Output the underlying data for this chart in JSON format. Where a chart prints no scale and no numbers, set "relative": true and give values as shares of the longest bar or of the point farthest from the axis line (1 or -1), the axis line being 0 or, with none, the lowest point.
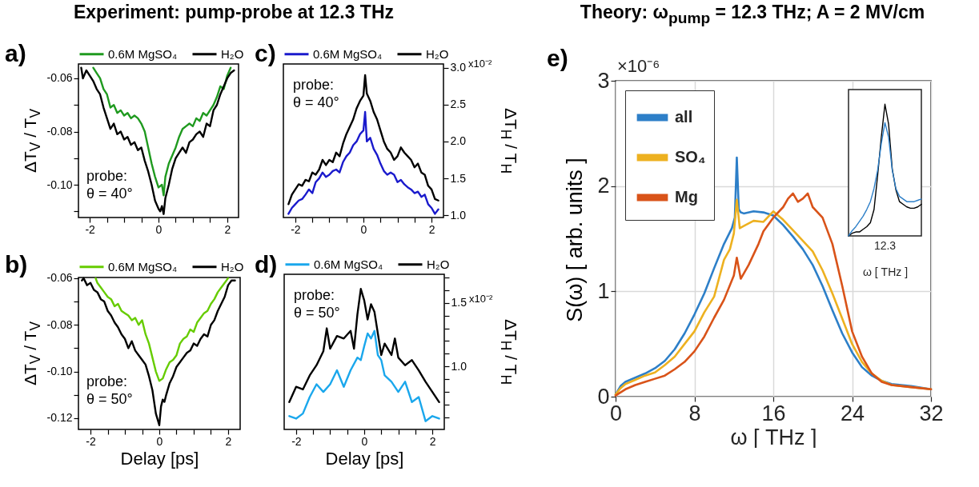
{
  "chart_data": [
    {
      "type": "line",
      "title": "a)",
      "ylabel": "ΔT$_{V}$ / T$_{V}$",
      "annotations": [
        "Experiment: pump-probe at 12.3 THz",
        "probe:\nθ = 40°"
      ],
      "legend": "top",
      "xlim": [
        -2.33,
        2.33
      ],
      "xticks": [
        -2,
        {
          "value": -1.5,
          "label": null
        },
        {
          "value": -1,
          "label": null
        },
        {
          "value": -0.5,
          "label": null
        },
        0,
        {
          "value": 0.5,
          "label": null
        },
        {
          "value": 1,
          "label": null
        },
        {
          "value": 1.5,
          "label": null
        },
        2
      ],
      "ylim": [
        -0.1123,
        -0.0546
      ],
      "yticks": [
        -0.06,
        {
          "value": -0.07,
          "label": null
        },
        -0.08,
        {
          "value": -0.09,
          "label": null
        },
        {
          "value": -0.1,
          "label": "-0.10"
        },
        {
          "value": -0.11,
          "label": null
        }
      ],
      "series": [
        {
          "name": "0.6M MgSO₄",
          "color": "#1f9a1f",
          "x": [
            -1.9,
            -1.8,
            -1.7,
            -1.6,
            -1.5,
            -1.4,
            -1.3,
            -1.2,
            -1.1,
            -1.0,
            -0.9,
            -0.8,
            -0.7,
            -0.6,
            -0.5,
            -0.4,
            -0.3,
            -0.2,
            -0.1,
            0,
            0.1,
            0.15,
            0.2,
            0.3,
            0.4,
            0.5,
            0.6,
            0.7,
            0.8,
            0.9,
            1.0,
            1.1,
            1.2,
            1.3,
            1.4,
            1.5,
            1.6,
            1.7,
            1.8,
            1.9,
            2.0,
            2.1
          ],
          "values": [
            -0.056,
            -0.058,
            -0.06,
            -0.064,
            -0.066,
            -0.071,
            -0.07,
            -0.073,
            -0.072,
            -0.074,
            -0.073,
            -0.075,
            -0.074,
            -0.075,
            -0.077,
            -0.08,
            -0.086,
            -0.092,
            -0.097,
            -0.101,
            -0.1,
            -0.104,
            -0.097,
            -0.092,
            -0.089,
            -0.086,
            -0.082,
            -0.079,
            -0.078,
            -0.077,
            -0.078,
            -0.075,
            -0.076,
            -0.073,
            -0.074,
            -0.072,
            -0.07,
            -0.067,
            -0.063,
            -0.064,
            -0.059,
            -0.056
          ]
        },
        {
          "name": "H₂O",
          "color": "#000000",
          "x": [
            -2.25,
            -2.2,
            -2.1,
            -2.0,
            -1.9,
            -1.8,
            -1.7,
            -1.6,
            -1.5,
            -1.4,
            -1.3,
            -1.2,
            -1.1,
            -1.0,
            -0.9,
            -0.8,
            -0.7,
            -0.6,
            -0.5,
            -0.4,
            -0.3,
            -0.2,
            -0.1,
            0,
            0.05,
            0.1,
            0.15,
            0.2,
            0.3,
            0.4,
            0.5,
            0.6,
            0.7,
            0.8,
            0.9,
            1.0,
            1.1,
            1.2,
            1.3,
            1.4,
            1.5,
            1.6,
            1.7,
            1.8,
            1.9,
            2.0,
            2.1,
            2.2
          ],
          "values": [
            -0.056,
            -0.06,
            -0.057,
            -0.059,
            -0.061,
            -0.064,
            -0.066,
            -0.071,
            -0.075,
            -0.079,
            -0.077,
            -0.081,
            -0.08,
            -0.083,
            -0.082,
            -0.085,
            -0.084,
            -0.087,
            -0.086,
            -0.091,
            -0.095,
            -0.1,
            -0.106,
            -0.109,
            -0.11,
            -0.108,
            -0.111,
            -0.105,
            -0.1,
            -0.094,
            -0.09,
            -0.088,
            -0.086,
            -0.088,
            -0.084,
            -0.083,
            -0.081,
            -0.08,
            -0.082,
            -0.077,
            -0.078,
            -0.072,
            -0.07,
            -0.066,
            -0.063,
            -0.06,
            -0.058,
            -0.057
          ]
        }
      ]
    },
    {
      "type": "line",
      "title": "b)",
      "xlabel": "Delay [ps]",
      "ylabel": "ΔT$_{V}$ / T$_{V}$",
      "annotations": [
        "probe:\nθ = 50°"
      ],
      "legend": "top",
      "xlim": [
        -2.35,
        2.35
      ],
      "xticks": [
        -2,
        {
          "value": -1.5,
          "label": null
        },
        {
          "value": -1,
          "label": null
        },
        {
          "value": -0.5,
          "label": null
        },
        0,
        {
          "value": 0.5,
          "label": null
        },
        {
          "value": 1,
          "label": null
        },
        {
          "value": 1.5,
          "label": null
        },
        2
      ],
      "ylim": [
        -0.1248,
        -0.0597
      ],
      "yticks": [
        -0.06,
        {
          "value": -0.07,
          "label": null
        },
        -0.08,
        {
          "value": -0.09,
          "label": null
        },
        {
          "value": -0.1,
          "label": "-0.10"
        },
        {
          "value": -0.11,
          "label": null
        },
        -0.12
      ],
      "series": [
        {
          "name": "0.6M MgSO₄",
          "color": "#66cc00",
          "x": [
            -1.85,
            -1.8,
            -1.7,
            -1.6,
            -1.5,
            -1.4,
            -1.3,
            -1.2,
            -1.1,
            -1.0,
            -0.9,
            -0.8,
            -0.7,
            -0.6,
            -0.5,
            -0.4,
            -0.3,
            -0.2,
            -0.1,
            0,
            0.1,
            0.2,
            0.3,
            0.4,
            0.5,
            0.6,
            0.7,
            0.8,
            0.9,
            1.0,
            1.1,
            1.2,
            1.3,
            1.4,
            1.5,
            1.6,
            1.7,
            1.8,
            1.9,
            2.0
          ],
          "values": [
            -0.06,
            -0.062,
            -0.064,
            -0.066,
            -0.068,
            -0.069,
            -0.072,
            -0.071,
            -0.074,
            -0.075,
            -0.076,
            -0.078,
            -0.077,
            -0.08,
            -0.078,
            -0.084,
            -0.088,
            -0.094,
            -0.1,
            -0.104,
            -0.103,
            -0.099,
            -0.096,
            -0.095,
            -0.093,
            -0.088,
            -0.086,
            -0.085,
            -0.082,
            -0.083,
            -0.079,
            -0.077,
            -0.075,
            -0.074,
            -0.071,
            -0.069,
            -0.066,
            -0.064,
            -0.062,
            -0.06
          ]
        },
        {
          "name": "H₂O",
          "color": "#000000",
          "x": [
            -2.25,
            -2.2,
            -2.1,
            -2.0,
            -1.9,
            -1.8,
            -1.7,
            -1.6,
            -1.5,
            -1.4,
            -1.3,
            -1.2,
            -1.1,
            -1.0,
            -0.9,
            -0.8,
            -0.7,
            -0.6,
            -0.5,
            -0.4,
            -0.3,
            -0.2,
            -0.1,
            0,
            0.05,
            0.1,
            0.15,
            0.2,
            0.3,
            0.4,
            0.5,
            0.6,
            0.7,
            0.8,
            0.9,
            1.0,
            1.1,
            1.2,
            1.3,
            1.4,
            1.5,
            1.6,
            1.7,
            1.8,
            1.9,
            2.0,
            2.1,
            2.2
          ],
          "values": [
            -0.061,
            -0.06,
            -0.063,
            -0.062,
            -0.065,
            -0.066,
            -0.069,
            -0.07,
            -0.074,
            -0.076,
            -0.079,
            -0.081,
            -0.084,
            -0.086,
            -0.09,
            -0.087,
            -0.091,
            -0.093,
            -0.095,
            -0.097,
            -0.102,
            -0.108,
            -0.118,
            -0.123,
            -0.115,
            -0.112,
            -0.113,
            -0.11,
            -0.105,
            -0.102,
            -0.098,
            -0.096,
            -0.094,
            -0.092,
            -0.091,
            -0.088,
            -0.089,
            -0.086,
            -0.084,
            -0.085,
            -0.08,
            -0.078,
            -0.074,
            -0.071,
            -0.068,
            -0.063,
            -0.061,
            -0.061
          ]
        }
      ]
    },
    {
      "type": "line",
      "title": "c)",
      "ylabel": "ΔT$_{H}$ / T$_{H}$",
      "annotations": [
        "probe:\nθ = 40°",
        "x10⁻²"
      ],
      "legend": "top",
      "xlim": [
        -2.35,
        2.35
      ],
      "xticks": [
        -2,
        {
          "value": -1.5,
          "label": null
        },
        {
          "value": -1,
          "label": null
        },
        {
          "value": -0.5,
          "label": null
        },
        0,
        {
          "value": 0.5,
          "label": null
        },
        {
          "value": 1,
          "label": null
        },
        {
          "value": 1.5,
          "label": null
        },
        2
      ],
      "ylim": [
        0.97,
        3.05
      ],
      "yticks": [
        {
          "value": 3,
          "label": "3.0"
        },
        2.5,
        {
          "value": 2,
          "label": "2.0"
        },
        1.5,
        {
          "value": 1,
          "label": "1.0"
        }
      ],
      "series": [
        {
          "name": "0.6M MgSO₄",
          "color": "#1a1acc",
          "x": [
            -2.2,
            -2.1,
            -2.0,
            -1.9,
            -1.8,
            -1.7,
            -1.6,
            -1.5,
            -1.4,
            -1.3,
            -1.2,
            -1.1,
            -1.0,
            -0.9,
            -0.8,
            -0.7,
            -0.6,
            -0.5,
            -0.4,
            -0.3,
            -0.2,
            -0.1,
            0,
            0.05,
            0.1,
            0.2,
            0.3,
            0.4,
            0.5,
            0.6,
            0.7,
            0.8,
            0.9,
            1.0,
            1.1,
            1.2,
            1.3,
            1.4,
            1.5,
            1.6,
            1.7,
            1.8,
            1.9,
            2.0,
            2.1,
            2.2
          ],
          "values": [
            1.02,
            1.1,
            1.15,
            1.2,
            1.22,
            1.28,
            1.35,
            1.3,
            1.45,
            1.5,
            1.58,
            1.52,
            1.55,
            1.6,
            1.62,
            1.58,
            1.72,
            1.8,
            1.85,
            1.95,
            2.0,
            2.1,
            2.15,
            2.4,
            2.0,
            2.05,
            1.9,
            1.82,
            1.7,
            1.6,
            1.55,
            1.58,
            1.55,
            1.45,
            1.48,
            1.42,
            1.38,
            1.35,
            1.3,
            1.32,
            1.25,
            1.28,
            1.15,
            1.1,
            1.02,
            1.08
          ]
        },
        {
          "name": "H₂O",
          "color": "#000000",
          "x": [
            -2.2,
            -2.1,
            -2.0,
            -1.9,
            -1.8,
            -1.7,
            -1.6,
            -1.5,
            -1.4,
            -1.3,
            -1.2,
            -1.1,
            -1.0,
            -0.9,
            -0.8,
            -0.7,
            -0.6,
            -0.5,
            -0.4,
            -0.3,
            -0.2,
            -0.1,
            0,
            0.05,
            0.1,
            0.2,
            0.3,
            0.4,
            0.5,
            0.6,
            0.7,
            0.8,
            0.9,
            1.0,
            1.1,
            1.2,
            1.3,
            1.4,
            1.5,
            1.6,
            1.7,
            1.8,
            1.9,
            2.0,
            2.1,
            2.2
          ],
          "values": [
            1.15,
            1.28,
            1.35,
            1.42,
            1.4,
            1.48,
            1.46,
            1.58,
            1.55,
            1.62,
            1.75,
            1.68,
            1.75,
            1.72,
            1.85,
            1.8,
            1.97,
            2.1,
            2.2,
            2.3,
            2.45,
            2.55,
            2.62,
            2.9,
            2.65,
            2.55,
            2.4,
            2.3,
            2.15,
            2.0,
            1.9,
            1.85,
            1.75,
            1.8,
            1.92,
            1.85,
            1.8,
            1.75,
            1.65,
            1.7,
            1.58,
            1.55,
            1.4,
            1.35,
            1.22,
            1.2
          ]
        }
      ]
    },
    {
      "type": "line",
      "title": "d)",
      "xlabel": "Delay [ps]",
      "ylabel": "ΔT$_{H}$ / T$_{H}$",
      "annotations": [
        "probe:\nθ = 50°",
        "x10⁻²"
      ],
      "legend": "top",
      "xlim": [
        -2.35,
        2.35
      ],
      "xticks": [
        -2,
        {
          "value": -1.5,
          "label": null
        },
        {
          "value": -1,
          "label": null
        },
        {
          "value": -0.5,
          "label": null
        },
        0,
        {
          "value": 0.5,
          "label": null
        },
        {
          "value": 1,
          "label": null
        },
        {
          "value": 1.5,
          "label": null
        },
        2
      ],
      "ylim": [
        0.505,
        1.725
      ],
      "yticks": [
        {
          "value": 1.7,
          "label": null
        },
        {
          "value": 1.6,
          "label": null
        },
        {
          "value": 1.5,
          "label": "1.5"
        },
        {
          "value": 1.4,
          "label": null
        },
        {
          "value": 1.3,
          "label": null
        },
        {
          "value": 1.2,
          "label": null
        },
        {
          "value": 1.1,
          "label": null
        },
        {
          "value": 1,
          "label": "1.0"
        },
        {
          "value": 0.9,
          "label": null
        },
        {
          "value": 0.8,
          "label": null
        },
        {
          "value": 0.7,
          "label": null
        },
        {
          "value": 0.6,
          "label": null
        }
      ],
      "series": [
        {
          "name": "0.6M MgSO₄",
          "color": "#1aa7ec",
          "x": [
            -2.2,
            -2.0,
            -1.8,
            -1.6,
            -1.4,
            -1.2,
            -1.0,
            -0.8,
            -0.6,
            -0.4,
            -0.2,
            -0.1,
            0,
            0.1,
            0.2,
            0.3,
            0.4,
            0.5,
            0.6,
            0.8,
            1.0,
            1.2,
            1.4,
            1.6,
            1.8,
            2.0,
            2.2
          ],
          "values": [
            0.61,
            0.59,
            0.63,
            0.76,
            0.86,
            0.8,
            0.86,
            0.97,
            0.84,
            0.97,
            1.07,
            1.05,
            1.16,
            1.26,
            1.22,
            1.28,
            1.09,
            1.05,
            0.93,
            0.88,
            0.8,
            0.88,
            0.72,
            0.76,
            0.57,
            0.61,
            0.59
          ]
        },
        {
          "name": "H₂O",
          "color": "#000000",
          "x": [
            -2.2,
            -2.0,
            -1.8,
            -1.6,
            -1.4,
            -1.2,
            -1.1,
            -1.0,
            -0.8,
            -0.6,
            -0.4,
            -0.3,
            -0.2,
            -0.1,
            0,
            0.1,
            0.2,
            0.3,
            0.4,
            0.5,
            0.6,
            0.8,
            0.9,
            1.0,
            1.2,
            1.4,
            1.6,
            1.8,
            2.0,
            2.2
          ],
          "values": [
            0.72,
            0.84,
            0.82,
            0.93,
            1.01,
            1.12,
            1.3,
            1.14,
            1.24,
            1.22,
            1.28,
            1.14,
            1.41,
            1.61,
            1.52,
            1.37,
            1.49,
            1.43,
            1.26,
            1.09,
            1.18,
            1.09,
            1.22,
            1.07,
            1.01,
            1.05,
            0.97,
            0.88,
            0.8,
            0.72
          ]
        }
      ]
    },
    {
      "type": "line",
      "title": "e)",
      "xlabel": "ω [ THz ]",
      "ylabel": "S(ω) [ arb. units ]",
      "annotations": [
        "Theory: ω$_{pump}$ = 12.3 THz; A = 2 MV/cm",
        "×10⁻⁶"
      ],
      "legend": "top left",
      "grid": true,
      "xlim": [
        0,
        32
      ],
      "xticks": [
        0,
        8,
        16,
        24,
        32
      ],
      "ylim": [
        0,
        3
      ],
      "yticks": [
        0,
        1,
        2,
        3
      ],
      "series": [
        {
          "name": "all",
          "color": "#2d7fc8",
          "x": [
            0,
            0.5,
            1,
            2,
            3,
            4,
            5,
            6,
            7,
            8,
            9,
            10,
            11,
            11.8,
            12.1,
            12.3,
            12.5,
            12.7,
            13,
            14,
            15,
            16,
            17,
            18,
            19,
            20,
            21,
            22,
            23,
            24,
            25,
            26,
            27,
            28,
            30,
            32
          ],
          "values": [
            0.02,
            0.1,
            0.14,
            0.18,
            0.22,
            0.27,
            0.34,
            0.45,
            0.6,
            0.78,
            0.98,
            1.22,
            1.45,
            1.6,
            1.7,
            2.27,
            1.78,
            1.75,
            1.74,
            1.76,
            1.75,
            1.72,
            1.63,
            1.52,
            1.4,
            1.25,
            1.05,
            0.82,
            0.6,
            0.42,
            0.28,
            0.2,
            0.15,
            0.12,
            0.1,
            0.07
          ]
        },
        {
          "name": "SO₄",
          "color": "#edb120",
          "x": [
            0,
            0.5,
            1,
            2,
            3,
            4,
            5,
            6,
            7,
            8,
            9,
            10,
            11,
            11.6,
            12.0,
            12.3,
            12.6,
            13,
            14,
            15,
            16,
            17,
            18,
            19,
            20,
            21,
            22,
            23,
            24,
            25,
            26,
            27,
            28,
            30,
            32
          ],
          "values": [
            0.02,
            0.08,
            0.12,
            0.16,
            0.2,
            0.23,
            0.3,
            0.38,
            0.5,
            0.62,
            0.8,
            0.95,
            1.3,
            1.4,
            1.55,
            1.87,
            1.6,
            1.62,
            1.67,
            1.66,
            1.76,
            1.68,
            1.58,
            1.48,
            1.38,
            1.2,
            0.98,
            0.74,
            0.5,
            0.33,
            0.22,
            0.15,
            0.11,
            0.09,
            0.07
          ]
        },
        {
          "name": "Mg",
          "color": "#d95319",
          "x": [
            0,
            1,
            2,
            3,
            4,
            5,
            6,
            7,
            8,
            9,
            10,
            11,
            12,
            12.3,
            12.7,
            13.5,
            14.5,
            15,
            16,
            17,
            17.5,
            18,
            18.5,
            19,
            19.5,
            20,
            21,
            22,
            23,
            24,
            25,
            26,
            27,
            28,
            30,
            32
          ],
          "values": [
            0.01,
            0.07,
            0.11,
            0.14,
            0.17,
            0.2,
            0.26,
            0.33,
            0.43,
            0.57,
            0.75,
            0.92,
            1.15,
            1.32,
            1.12,
            1.25,
            1.45,
            1.57,
            1.7,
            1.8,
            1.88,
            1.93,
            1.85,
            1.88,
            1.93,
            1.8,
            1.7,
            1.45,
            1.05,
            0.62,
            0.38,
            0.22,
            0.14,
            0.11,
            0.09,
            0.07
          ]
        }
      ]
    },
    {
      "type": "line",
      "relative": true,
      "xlabel": "ω [ THz ]",
      "annotations": [
        "12.3"
      ],
      "categories": [
        null,
        null,
        null,
        null,
        null,
        null,
        null,
        null,
        null,
        null,
        null,
        null,
        null,
        null,
        null,
        null,
        null,
        null,
        null,
        null,
        null
      ],
      "series": [
        {
          "color": "#000000",
          "values": [
            0,
            0.02,
            0.03,
            0.03,
            0.05,
            0.07,
            0.1,
            0.2,
            0.46,
            0.75,
            1,
            0.85,
            0.51,
            0.35,
            0.26,
            0.24,
            0.22,
            0.21,
            0.21,
            0.22,
            0.24
          ]
        },
        {
          "color": "#2d7fc8",
          "values": [
            0,
            0.04,
            0.07,
            0.11,
            0.15,
            0.2,
            0.26,
            0.36,
            0.5,
            0.7,
            0.86,
            0.75,
            0.5,
            0.36,
            0.3,
            0.28,
            0.26,
            0.26,
            0.26,
            0.27,
            0.28
          ]
        }
      ]
    }
  ]
}
